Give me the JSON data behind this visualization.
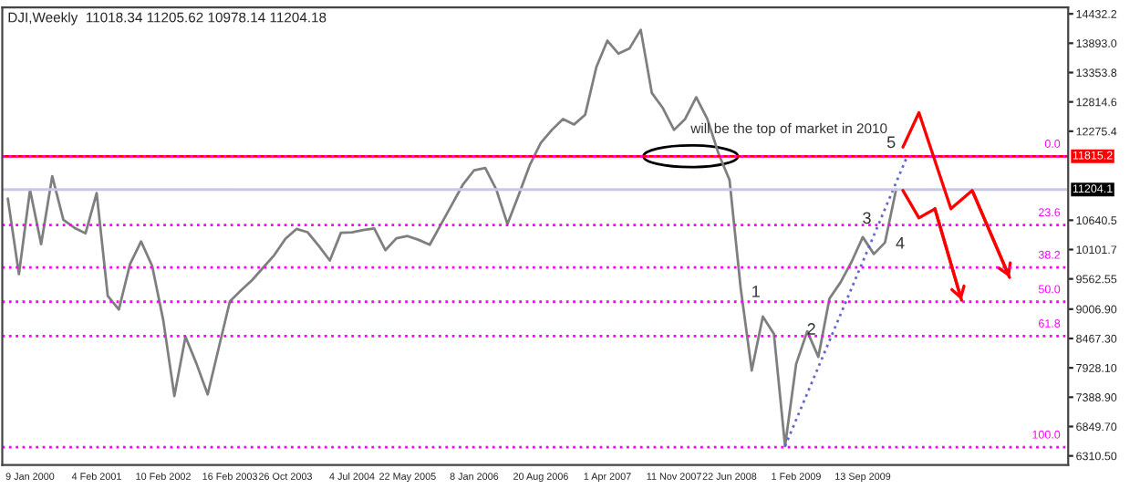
{
  "chart_data": {
    "type": "line",
    "title": "DJI,Weekly  11018.34 11205.62 10978.14 11204.18",
    "categories": [
      null,
      null,
      "9 Jan 2000",
      null,
      null,
      null,
      null,
      null,
      "4 Feb 2001",
      null,
      null,
      null,
      null,
      null,
      "10 Feb 2002",
      null,
      null,
      null,
      null,
      null,
      "16 Feb 2003",
      null,
      null,
      null,
      null,
      "26 Oct 2003",
      null,
      null,
      null,
      null,
      null,
      "4 Jul 2004",
      null,
      null,
      null,
      null,
      "22 May 2005",
      null,
      null,
      null,
      null,
      null,
      "8 Jan 2006",
      null,
      null,
      null,
      null,
      null,
      "20 Aug 2006",
      null,
      null,
      null,
      null,
      null,
      "1 Apr 2007",
      null,
      null,
      null,
      null,
      null,
      "11 Nov 2007",
      null,
      null,
      null,
      null,
      "22 Jun 2008",
      null,
      null,
      null,
      null,
      null,
      "1 Feb 2009",
      null,
      null,
      null,
      null,
      null,
      "13 Sep 2009",
      null,
      null,
      null,
      null,
      null,
      null,
      null,
      null,
      null,
      null,
      null,
      null,
      null,
      null,
      null,
      null,
      null,
      null
    ],
    "series": [
      {
        "color": "#7f7f7f",
        "values": [
          11040,
          9650,
          11200,
          10200,
          11450,
          10650,
          10500,
          10400,
          11140,
          9250,
          9000,
          9830,
          10250,
          9800,
          8800,
          7410,
          8500,
          8000,
          7440,
          8300,
          9150,
          9350,
          9540,
          9770,
          10000,
          10300,
          10480,
          10420,
          10170,
          9900,
          10410,
          10420,
          10460,
          10490,
          10090,
          10310,
          10350,
          10280,
          10190,
          10560,
          10930,
          11300,
          11560,
          11600,
          11200,
          10570,
          11100,
          11650,
          12060,
          12300,
          12500,
          12400,
          12580,
          13450,
          13940,
          13700,
          13800,
          14140,
          12980,
          12700,
          12300,
          12500,
          12900,
          12500,
          11870,
          11380,
          9400,
          7880,
          8870,
          8550,
          6490,
          8000,
          8600,
          8130,
          9200,
          9500,
          9880,
          10330,
          10020,
          10230,
          11204,
          null,
          null,
          null,
          null,
          null,
          null,
          null,
          null,
          null,
          null,
          null,
          null,
          null,
          null,
          null
        ]
      },
      {
        "type": "line",
        "color": "#6666cc",
        "line_style": "dotted",
        "values": [
          null,
          null,
          null,
          null,
          null,
          null,
          null,
          null,
          null,
          null,
          null,
          null,
          null,
          null,
          null,
          null,
          null,
          null,
          null,
          null,
          null,
          null,
          null,
          null,
          null,
          null,
          null,
          null,
          null,
          null,
          null,
          null,
          null,
          null,
          null,
          null,
          null,
          null,
          null,
          null,
          null,
          null,
          null,
          null,
          null,
          null,
          null,
          null,
          null,
          null,
          null,
          null,
          null,
          null,
          null,
          null,
          null,
          null,
          null,
          null,
          null,
          null,
          null,
          null,
          null,
          null,
          null,
          null,
          null,
          null,
          6490,
          null,
          null,
          null,
          null,
          null,
          null,
          null,
          null,
          null,
          null,
          11815,
          null,
          null,
          null,
          null,
          null,
          null,
          null,
          null,
          null,
          null,
          null,
          null,
          null,
          null
        ]
      }
    ],
    "ylim": [
      6143,
      14549
    ],
    "yticks": [
      {
        "value": 6310.5,
        "label": "6310.50"
      },
      {
        "value": 6849.7,
        "label": "6849.70"
      },
      {
        "value": 7388.9,
        "label": "7388.90"
      },
      {
        "value": 7928.1,
        "label": "7928.10"
      },
      {
        "value": 8467.3,
        "label": "8467.30"
      },
      {
        "value": 9006.9,
        "label": "9006.90"
      },
      9562.55,
      10101.7,
      10640.5,
      12275.4,
      12814.6,
      13353.8,
      {
        "value": 13893,
        "label": "13893.0"
      },
      14432.2
    ],
    "ref_lines": [
      {
        "axis": "y",
        "value": 11815.2,
        "label": "11815.2",
        "color": "#ff0000",
        "line_style": "solid"
      },
      {
        "axis": "y",
        "value": 11204.1,
        "label": "11204.1",
        "color": "#c8c8e6",
        "line_style": "solid"
      },
      {
        "axis": "y",
        "value": 11815,
        "color": "#ff00ff",
        "line_style": "dotted"
      },
      {
        "axis": "y",
        "value": 10554,
        "color": "#ff00ff",
        "line_style": "dotted"
      },
      {
        "axis": "y",
        "value": 9773,
        "color": "#ff00ff",
        "line_style": "dotted"
      },
      {
        "axis": "y",
        "value": 9142,
        "color": "#ff00ff",
        "line_style": "dotted"
      },
      {
        "axis": "y",
        "value": 8512,
        "color": "#ff00ff",
        "line_style": "dotted"
      },
      {
        "axis": "y",
        "value": 6470,
        "color": "#ff00ff",
        "line_style": "dotted"
      }
    ],
    "annotations": [
      {
        "text": "will be the top of market in 2010",
        "y": 11815
      },
      {
        "text": "1",
        "y": 8980
      },
      {
        "text": "2",
        "y": 8290
      },
      {
        "text": "3",
        "y": 10330
      },
      {
        "text": "4",
        "y": 9870
      },
      {
        "text": "5",
        "y": 11815
      },
      {
        "text": "0.0",
        "y": 11815
      },
      {
        "text": "23.6",
        "y": 10554
      },
      {
        "text": "38.2",
        "y": 9773
      },
      {
        "text": "50.0",
        "y": 9142
      },
      {
        "text": "61.8",
        "y": 8512
      },
      {
        "text": "100.0",
        "y": 6470
      }
    ],
    "grid": false,
    "legend": false
  }
}
